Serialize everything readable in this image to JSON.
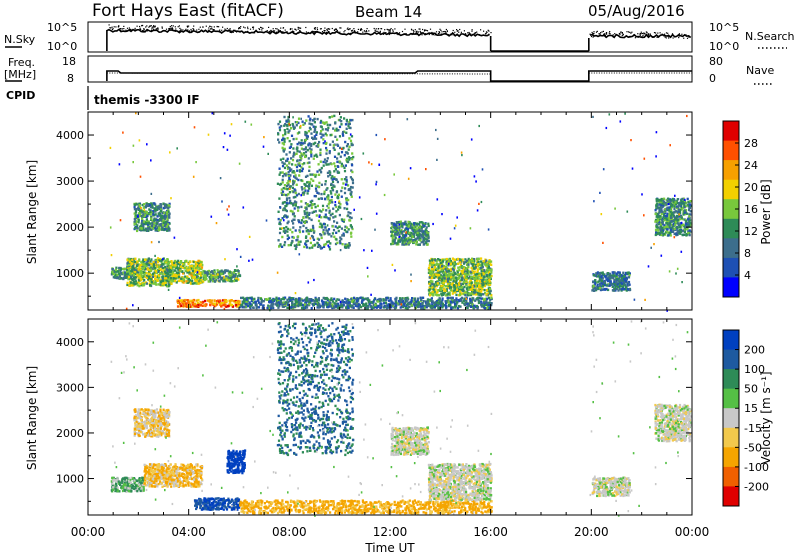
{
  "header": {
    "site": "Fort Hays East (fitACF)",
    "beam": "Beam 14",
    "date": "05/Aug/2016"
  },
  "side_labels": {
    "nsky": "N.Sky",
    "nsearch": "N.Search",
    "freq_line1": "Freq.",
    "freq_line2": "[MHz]",
    "nave": "Nave",
    "cpid": "CPID",
    "cpid_value": "themis -3300 IF"
  },
  "noise_panel": {
    "left_ticks": [
      "10^5",
      "10^0"
    ],
    "right_ticks": [
      "10^5",
      "10^0"
    ],
    "gap_hours": [
      16.0,
      19.9
    ]
  },
  "freq_panel": {
    "left_ticks": [
      "18",
      "8"
    ],
    "right_ticks": [
      "80",
      "0"
    ],
    "gap_hours": [
      16.0,
      19.9
    ]
  },
  "xaxis": {
    "label": "Time UT",
    "ticks": [
      "00:00",
      "04:00",
      "08:00",
      "12:00",
      "16:00",
      "20:00",
      "00:00"
    ],
    "range_hours": [
      0,
      24
    ]
  },
  "power_colorbar": {
    "label": "Power [dB]",
    "ticks": [
      "28",
      "24",
      "20",
      "16",
      "12",
      "8",
      "4"
    ],
    "colors": [
      "#e00000",
      "#ff5000",
      "#f7a000",
      "#f2d000",
      "#78c83c",
      "#2e8b57",
      "#3c6e8c",
      "#1e50b4",
      "#0000ff"
    ]
  },
  "velocity_colorbar": {
    "label": "Velocity [m s⁻¹]",
    "ticks": [
      "200",
      "100",
      "50",
      "15",
      "-15",
      "-50",
      "-100",
      "-200"
    ],
    "colors": [
      "#0040c0",
      "#1e5aa0",
      "#2e8b57",
      "#55c045",
      "#c8c8c8",
      "#f2c94c",
      "#f5a500",
      "#f06000",
      "#e00000"
    ]
  },
  "chart_data": [
    {
      "type": "heatmap",
      "title": "",
      "xlabel": "Time UT",
      "ylabel": "Slant Range [km]",
      "xlim": [
        0,
        24
      ],
      "ylim": [
        200,
        4500
      ],
      "yticks": [
        "1000",
        "2000",
        "3000",
        "4000"
      ],
      "colorbar_label": "Power [dB]",
      "echo_regions": [
        {
          "t": [
            0.9,
            2.0
          ],
          "r": [
            850,
            1100
          ],
          "value": 10
        },
        {
          "t": [
            1.5,
            3.2
          ],
          "r": [
            700,
            1300
          ],
          "value": 14
        },
        {
          "t": [
            3.2,
            4.5
          ],
          "r": [
            750,
            1250
          ],
          "value": 16
        },
        {
          "t": [
            4.5,
            6.0
          ],
          "r": [
            800,
            1050
          ],
          "value": 12
        },
        {
          "t": [
            1.8,
            3.2
          ],
          "r": [
            1900,
            2500
          ],
          "value": 10
        },
        {
          "t": [
            3.5,
            6.0
          ],
          "r": [
            250,
            400
          ],
          "value": 24
        },
        {
          "t": [
            6.0,
            16.0
          ],
          "r": [
            220,
            450
          ],
          "value": 8
        },
        {
          "t": [
            12.0,
            13.5
          ],
          "r": [
            1600,
            2100
          ],
          "value": 10
        },
        {
          "t": [
            13.5,
            16.0
          ],
          "r": [
            500,
            1300
          ],
          "value": 14
        },
        {
          "t": [
            20.0,
            21.5
          ],
          "r": [
            600,
            1000
          ],
          "value": 8
        },
        {
          "t": [
            22.5,
            23.9
          ],
          "r": [
            1800,
            2600
          ],
          "value": 10
        },
        {
          "t": [
            7.5,
            10.5
          ],
          "r": [
            1500,
            4400
          ],
          "value": 10
        }
      ]
    },
    {
      "type": "heatmap",
      "title": "",
      "xlabel": "Time UT",
      "ylabel": "Slant Range [km]",
      "xlim": [
        0,
        24
      ],
      "ylim": [
        200,
        4500
      ],
      "yticks": [
        "1000",
        "2000",
        "3000",
        "4000"
      ],
      "colorbar_label": "Velocity [m s⁻¹]",
      "echo_regions": [
        {
          "t": [
            0.9,
            2.2
          ],
          "r": [
            700,
            1000
          ],
          "value": 30
        },
        {
          "t": [
            2.2,
            4.5
          ],
          "r": [
            800,
            1300
          ],
          "value": -30
        },
        {
          "t": [
            4.2,
            6.0
          ],
          "r": [
            300,
            550
          ],
          "value": 150
        },
        {
          "t": [
            5.5,
            6.2
          ],
          "r": [
            1100,
            1600
          ],
          "value": 220
        },
        {
          "t": [
            1.8,
            3.2
          ],
          "r": [
            1900,
            2500
          ],
          "value": -20
        },
        {
          "t": [
            6.0,
            16.0
          ],
          "r": [
            220,
            500
          ],
          "value": -40
        },
        {
          "t": [
            12.0,
            13.5
          ],
          "r": [
            1500,
            2100
          ],
          "value": 0
        },
        {
          "t": [
            13.5,
            16.0
          ],
          "r": [
            500,
            1300
          ],
          "value": 0
        },
        {
          "t": [
            20.0,
            21.5
          ],
          "r": [
            600,
            1000
          ],
          "value": 0
        },
        {
          "t": [
            22.5,
            23.9
          ],
          "r": [
            1800,
            2600
          ],
          "value": 0
        },
        {
          "t": [
            7.5,
            10.5
          ],
          "r": [
            1500,
            4400
          ],
          "value": 80
        }
      ]
    }
  ]
}
